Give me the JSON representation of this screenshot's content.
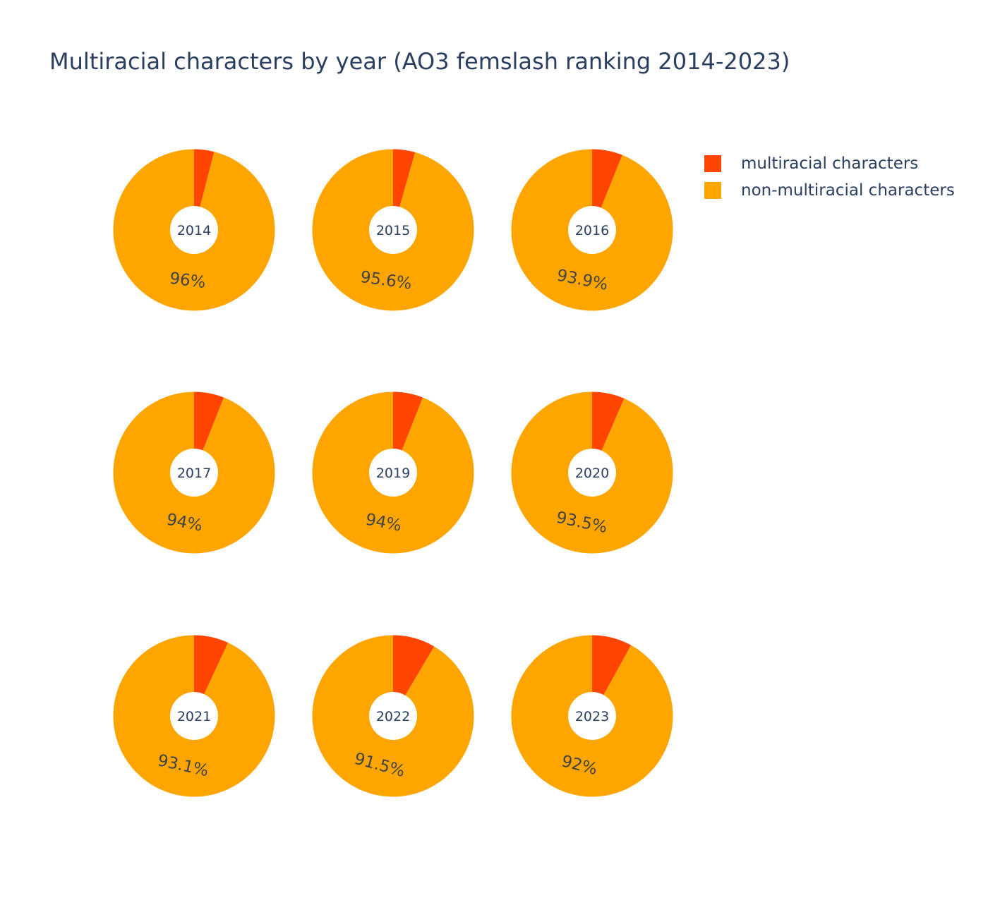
{
  "chart_data": {
    "type": "pie",
    "title": "Multiracial characters by year (AO3 femslash ranking 2014-2023)",
    "legend": {
      "placement": "top-right",
      "entries": [
        "multiracial characters",
        "non-multiracial characters"
      ]
    },
    "colors": {
      "multiracial characters": "#ff4500",
      "non-multiracial characters": "#ffa500"
    },
    "labels": [
      "multiracial characters",
      "non-multiracial characters"
    ],
    "hole_label_color": "#2a3f5f",
    "percent_label_color": "#444444",
    "pies": [
      {
        "year": "2014",
        "values": [
          4.0,
          96.0
        ],
        "percent_label": "96%"
      },
      {
        "year": "2015",
        "values": [
          4.4,
          95.6
        ],
        "percent_label": "95.6%"
      },
      {
        "year": "2016",
        "values": [
          6.1,
          93.9
        ],
        "percent_label": "93.9%"
      },
      {
        "year": "2017",
        "values": [
          6.0,
          94.0
        ],
        "percent_label": "94%"
      },
      {
        "year": "2019",
        "values": [
          6.0,
          94.0
        ],
        "percent_label": "94%"
      },
      {
        "year": "2020",
        "values": [
          6.5,
          93.5
        ],
        "percent_label": "93.5%"
      },
      {
        "year": "2021",
        "values": [
          6.9,
          93.1
        ],
        "percent_label": "93.1%"
      },
      {
        "year": "2022",
        "values": [
          8.5,
          91.5
        ],
        "percent_label": "91.5%"
      },
      {
        "year": "2023",
        "values": [
          8.0,
          92.0
        ],
        "percent_label": "92%"
      }
    ]
  }
}
